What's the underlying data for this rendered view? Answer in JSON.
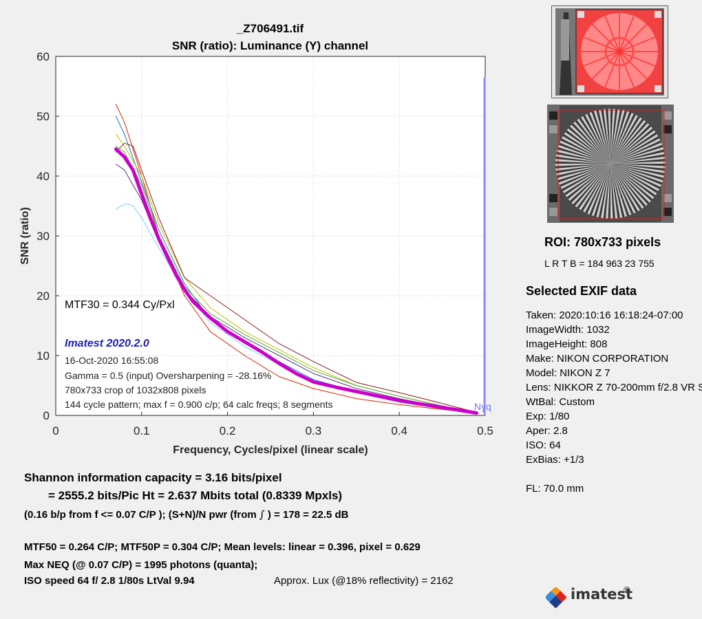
{
  "header": {
    "filename": "_Z706491.tif",
    "plot_title": "SNR (ratio):  Luminance (Y) channel"
  },
  "chart_data": {
    "type": "line",
    "title": "SNR (ratio):  Luminance (Y) channel",
    "xlabel": "Frequency, Cycles/pixel (linear scale)",
    "ylabel": "SNR (ratio)",
    "xlim": [
      0,
      0.5
    ],
    "ylim": [
      0,
      60
    ],
    "x_ticks": [
      0,
      0.1,
      0.2,
      0.3,
      0.4,
      0.5
    ],
    "x_tick_labels": [
      "0",
      "0.1",
      "0.2",
      "0.3",
      "0.4",
      "0.5"
    ],
    "y_ticks": [
      0,
      10,
      20,
      30,
      40,
      50,
      60
    ],
    "y_tick_labels": [
      "0",
      "10",
      "20",
      "30",
      "40",
      "50",
      "60"
    ],
    "grid": true,
    "nyquist": {
      "label": "Nyq",
      "x": 0.5,
      "color": "#8888ff"
    },
    "series": [
      {
        "color": "#dd2200",
        "width": 1,
        "x": [
          0.07,
          0.08,
          0.1,
          0.12,
          0.15,
          0.18,
          0.22,
          0.26,
          0.3,
          0.35,
          0.4,
          0.45,
          0.49
        ],
        "y": [
          52,
          49,
          40,
          30,
          20,
          14,
          10,
          6.5,
          4.5,
          2.8,
          1.8,
          1.0,
          0.4
        ]
      },
      {
        "color": "#1f77b4",
        "width": 1,
        "x": [
          0.07,
          0.08,
          0.1,
          0.12,
          0.15,
          0.18,
          0.22,
          0.26,
          0.3,
          0.35,
          0.4,
          0.45,
          0.49
        ],
        "y": [
          50,
          47,
          39,
          31,
          22,
          16,
          12,
          9,
          6,
          4,
          2.5,
          1.2,
          0.4
        ]
      },
      {
        "color": "#bbbb00",
        "width": 1,
        "x": [
          0.07,
          0.08,
          0.1,
          0.12,
          0.15,
          0.18,
          0.22,
          0.26,
          0.3,
          0.35,
          0.4,
          0.45,
          0.49
        ],
        "y": [
          47,
          45,
          40,
          32,
          23,
          18,
          14,
          11,
          8,
          5,
          3.2,
          1.6,
          0.5
        ]
      },
      {
        "color": "#8b1a1a",
        "width": 1,
        "x": [
          0.07,
          0.08,
          0.09,
          0.1,
          0.12,
          0.15,
          0.18,
          0.2,
          0.23,
          0.26,
          0.3,
          0.35,
          0.4,
          0.45,
          0.49
        ],
        "y": [
          44,
          45.5,
          45,
          41,
          33,
          23,
          20,
          18,
          15,
          12,
          9,
          5.5,
          3.8,
          2.0,
          0.5
        ]
      },
      {
        "color": "#5a2d82",
        "width": 1,
        "x": [
          0.07,
          0.08,
          0.1,
          0.12,
          0.15,
          0.18,
          0.22,
          0.26,
          0.3,
          0.35,
          0.4,
          0.45,
          0.49
        ],
        "y": [
          42,
          41,
          36,
          29,
          21,
          16.5,
          13,
          10,
          7,
          4.5,
          2.8,
          1.4,
          0.4
        ]
      },
      {
        "color": "#7fc8ff",
        "width": 1,
        "x": [
          0.07,
          0.08,
          0.085,
          0.09,
          0.1,
          0.12,
          0.15,
          0.18,
          0.22,
          0.26,
          0.3,
          0.35,
          0.4,
          0.45,
          0.49
        ],
        "y": [
          34.5,
          35.3,
          35.3,
          35,
          33,
          28,
          21,
          15.5,
          11.5,
          8.5,
          5.5,
          3.8,
          2.2,
          1.1,
          0.4
        ]
      },
      {
        "color": "#4aa82e",
        "width": 1,
        "x": [
          0.07,
          0.08,
          0.1,
          0.12,
          0.15,
          0.18,
          0.22,
          0.26,
          0.3,
          0.35,
          0.4,
          0.45,
          0.49
        ],
        "y": [
          45,
          44,
          38.5,
          30,
          21.5,
          17,
          13.5,
          10.5,
          7.5,
          5,
          3.2,
          1.6,
          0.5
        ]
      },
      {
        "color": "#cc00cc",
        "width": 5,
        "x": [
          0.07,
          0.08,
          0.09,
          0.1,
          0.11,
          0.12,
          0.13,
          0.14,
          0.15,
          0.16,
          0.18,
          0.2,
          0.22,
          0.24,
          0.26,
          0.28,
          0.3,
          0.33,
          0.36,
          0.4,
          0.43,
          0.46,
          0.49
        ],
        "y": [
          44.5,
          43.2,
          41,
          37,
          33,
          29.5,
          26.5,
          23.5,
          21,
          19,
          16.3,
          14,
          12.3,
          10.6,
          8.7,
          7,
          5.6,
          4.6,
          3.7,
          2.5,
          1.8,
          1.1,
          0.4
        ]
      }
    ],
    "annotations": {
      "mtf30": "MTF30 = 0.344 Cy/Pxl",
      "version": "Imatest 2020.2.0",
      "date": "16-Oct-2020 16:55:08",
      "gamma": "Gamma = 0.5 (input)  Oversharpening = -28.16%",
      "crop": "780x733 crop of 1032x808 pixels",
      "pattern": "144 cycle pattern; max f = 0.900 c/p;  64 calc freqs;  8 segments"
    }
  },
  "shannon": {
    "line1": "Shannon information capacity  =  3.16 bits/pixel",
    "line2": "=  2555.2 bits/Pic Ht =  2.637 Mbits total (0.8339 Mpxls)",
    "line3": "(0.16 b/p from f <= 0.07 C/P );   (S+N)/N pwr (from",
    "line3_symbol": "∫",
    "line3_end": ") = 178 = 22.5 dB"
  },
  "summary": {
    "mtf": "MTF50 = 0.264 C/P;  MTF50P = 0.304 C/P;     Mean levels:  linear = 0.396,  pixel = 0.629",
    "neq": "Max NEQ (@ 0.07 C/P) = 1995 photons (quanta);",
    "iso": "ISO speed  64   f/ 2.8    1/80s    LtVal 9.94",
    "lux": "Approx. Lux (@18% reflectivity) = 2162"
  },
  "roi": {
    "title": "ROI:  780x733 pixels",
    "lrtb": "L R  T B = 184 963  23 755"
  },
  "exif": {
    "title": "Selected EXIF data",
    "lines": [
      "Taken: 2020:10:16 16:18:24-07:00",
      "ImageWidth:  1032",
      "ImageHeight:  808",
      "Make:  NIKON CORPORATION",
      "Model: NIKON Z 7",
      "Lens:  NIKKOR Z 70-200mm f/2.8 VR S",
      "WtBal:  Custom",
      "Exp:   1/80",
      "Aper:  2.8",
      "ISO:   64",
      "ExBias:  +1/3"
    ],
    "fl": "FL:  70.0 mm"
  },
  "logo": {
    "text": "imatest",
    "mark": "®"
  }
}
